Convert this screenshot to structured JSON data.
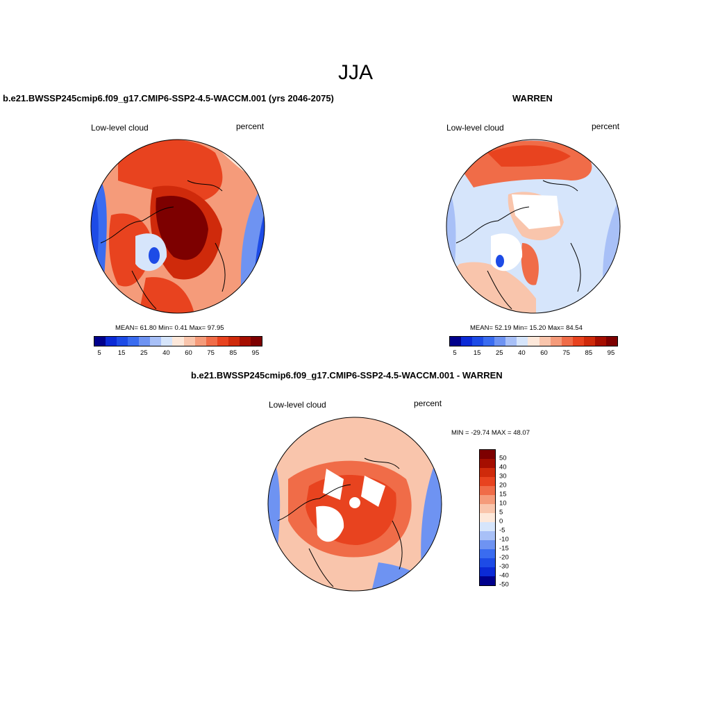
{
  "title": "JJA",
  "panel_left": {
    "title": "b.e21.BWSSP245cmip6.f09_g17.CMIP6-SSP2-4.5-WACCM.001 (yrs 2046-2075)",
    "left_label": "Low-level cloud",
    "right_label": "percent",
    "stats": "MEAN=  61.80  Min=   0.41  Max=  97.95"
  },
  "panel_right": {
    "title": "WARREN",
    "left_label": "Low-level cloud",
    "right_label": "percent",
    "stats": "MEAN=  52.19  Min=  15.20  Max=  84.54"
  },
  "panel_diff": {
    "title": "b.e21.BWSSP245cmip6.f09_g17.CMIP6-SSP2-4.5-WACCM.001 - WARREN",
    "left_label": "Low-level cloud",
    "right_label": "percent",
    "stats": "MIN = -29.74 MAX =  48.07"
  },
  "colorbar_top": {
    "colors": [
      "#00008c",
      "#0b2ad6",
      "#1d4be6",
      "#3a6cf0",
      "#6e93f2",
      "#a8c0f7",
      "#d6e5fb",
      "#fde8da",
      "#f9c5ac",
      "#f59b7a",
      "#f06c48",
      "#e8431f",
      "#cf2a0b",
      "#a50e00",
      "#7d0000"
    ],
    "labels": [
      "5",
      "15",
      "25",
      "40",
      "60",
      "75",
      "85",
      "95"
    ]
  },
  "colorbar_diff": {
    "colors": [
      "#7d0000",
      "#a50e00",
      "#cf2a0b",
      "#e8431f",
      "#f06c48",
      "#f59b7a",
      "#f9c5ac",
      "#fde8da",
      "#d6e5fb",
      "#a8c0f7",
      "#6e93f2",
      "#3a6cf0",
      "#1d4be6",
      "#0b2ad6",
      "#00008c"
    ],
    "labels": [
      "50",
      "40",
      "30",
      "20",
      "15",
      "10",
      "5",
      "0",
      "-5",
      "-10",
      "-15",
      "-20",
      "-30",
      "-40",
      "-50"
    ]
  }
}
